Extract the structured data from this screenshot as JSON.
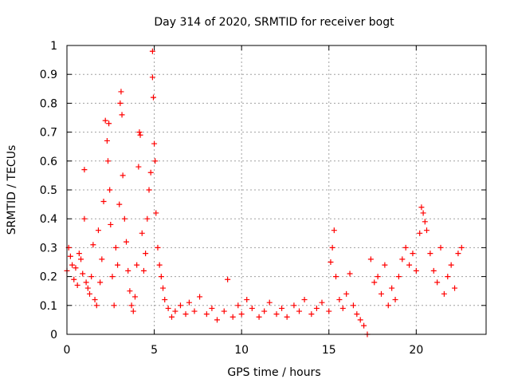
{
  "chart_data": {
    "type": "scatter",
    "title": "Day 314 of 2020, SRMTID for receiver bogt",
    "xlabel": "GPS time / hours",
    "ylabel": "SRMTID / TECUs",
    "xlim": [
      0,
      24
    ],
    "ylim": [
      0,
      1
    ],
    "x_ticks": [
      0,
      5,
      10,
      15,
      20
    ],
    "x_tick_labels": [
      "0",
      "5",
      "10",
      "15",
      "20"
    ],
    "y_ticks": [
      0,
      0.1,
      0.2,
      0.3,
      0.4,
      0.5,
      0.6,
      0.7,
      0.8,
      0.9,
      1
    ],
    "y_tick_labels": [
      "0",
      "0.1",
      "0.2",
      "0.3",
      "0.4",
      "0.5",
      "0.6",
      "0.7",
      "0.8",
      "0.9",
      "1"
    ],
    "grid": true,
    "marker": "plus",
    "color": "#ff0000",
    "series": [
      {
        "name": "SRMTID",
        "points": [
          [
            0.0,
            0.22
          ],
          [
            0.1,
            0.3
          ],
          [
            0.2,
            0.27
          ],
          [
            0.3,
            0.24
          ],
          [
            0.4,
            0.19
          ],
          [
            0.5,
            0.23
          ],
          [
            0.6,
            0.17
          ],
          [
            0.7,
            0.28
          ],
          [
            0.8,
            0.26
          ],
          [
            0.9,
            0.21
          ],
          [
            1.0,
            0.57
          ],
          [
            1.0,
            0.4
          ],
          [
            1.1,
            0.18
          ],
          [
            1.2,
            0.16
          ],
          [
            1.3,
            0.14
          ],
          [
            1.4,
            0.2
          ],
          [
            1.5,
            0.31
          ],
          [
            1.6,
            0.12
          ],
          [
            1.7,
            0.1
          ],
          [
            1.8,
            0.36
          ],
          [
            1.9,
            0.18
          ],
          [
            2.0,
            0.26
          ],
          [
            2.1,
            0.46
          ],
          [
            2.2,
            0.74
          ],
          [
            2.3,
            0.67
          ],
          [
            2.35,
            0.6
          ],
          [
            2.4,
            0.73
          ],
          [
            2.45,
            0.5
          ],
          [
            2.5,
            0.38
          ],
          [
            2.6,
            0.2
          ],
          [
            2.7,
            0.1
          ],
          [
            2.8,
            0.3
          ],
          [
            2.9,
            0.24
          ],
          [
            3.0,
            0.45
          ],
          [
            3.05,
            0.8
          ],
          [
            3.1,
            0.84
          ],
          [
            3.15,
            0.76
          ],
          [
            3.2,
            0.55
          ],
          [
            3.3,
            0.4
          ],
          [
            3.4,
            0.32
          ],
          [
            3.5,
            0.22
          ],
          [
            3.6,
            0.15
          ],
          [
            3.7,
            0.1
          ],
          [
            3.8,
            0.08
          ],
          [
            3.9,
            0.13
          ],
          [
            4.0,
            0.24
          ],
          [
            4.1,
            0.58
          ],
          [
            4.15,
            0.7
          ],
          [
            4.2,
            0.69
          ],
          [
            4.3,
            0.35
          ],
          [
            4.4,
            0.22
          ],
          [
            4.5,
            0.28
          ],
          [
            4.6,
            0.4
          ],
          [
            4.7,
            0.5
          ],
          [
            4.8,
            0.56
          ],
          [
            4.9,
            0.98
          ],
          [
            4.9,
            0.89
          ],
          [
            4.95,
            0.82
          ],
          [
            5.0,
            0.66
          ],
          [
            5.05,
            0.6
          ],
          [
            5.1,
            0.42
          ],
          [
            5.2,
            0.3
          ],
          [
            5.3,
            0.24
          ],
          [
            5.4,
            0.2
          ],
          [
            5.5,
            0.16
          ],
          [
            5.6,
            0.12
          ],
          [
            5.8,
            0.09
          ],
          [
            6.0,
            0.06
          ],
          [
            6.2,
            0.08
          ],
          [
            6.5,
            0.1
          ],
          [
            6.8,
            0.07
          ],
          [
            7.0,
            0.11
          ],
          [
            7.3,
            0.08
          ],
          [
            7.6,
            0.13
          ],
          [
            8.0,
            0.07
          ],
          [
            8.3,
            0.09
          ],
          [
            8.6,
            0.05
          ],
          [
            9.0,
            0.08
          ],
          [
            9.2,
            0.19
          ],
          [
            9.5,
            0.06
          ],
          [
            9.8,
            0.1
          ],
          [
            10.0,
            0.07
          ],
          [
            10.3,
            0.12
          ],
          [
            10.6,
            0.09
          ],
          [
            11.0,
            0.06
          ],
          [
            11.3,
            0.08
          ],
          [
            11.6,
            0.11
          ],
          [
            12.0,
            0.07
          ],
          [
            12.3,
            0.09
          ],
          [
            12.6,
            0.06
          ],
          [
            13.0,
            0.1
          ],
          [
            13.3,
            0.08
          ],
          [
            13.6,
            0.12
          ],
          [
            14.0,
            0.07
          ],
          [
            14.3,
            0.09
          ],
          [
            14.6,
            0.11
          ],
          [
            15.0,
            0.08
          ],
          [
            15.1,
            0.25
          ],
          [
            15.2,
            0.3
          ],
          [
            15.3,
            0.36
          ],
          [
            15.4,
            0.2
          ],
          [
            15.6,
            0.12
          ],
          [
            15.8,
            0.09
          ],
          [
            16.0,
            0.14
          ],
          [
            16.2,
            0.21
          ],
          [
            16.4,
            0.1
          ],
          [
            16.6,
            0.07
          ],
          [
            16.8,
            0.05
          ],
          [
            17.0,
            0.03
          ],
          [
            17.2,
            0.0
          ],
          [
            17.4,
            0.26
          ],
          [
            17.6,
            0.18
          ],
          [
            17.8,
            0.2
          ],
          [
            18.0,
            0.14
          ],
          [
            18.2,
            0.24
          ],
          [
            18.4,
            0.1
          ],
          [
            18.6,
            0.16
          ],
          [
            18.8,
            0.12
          ],
          [
            19.0,
            0.2
          ],
          [
            19.2,
            0.26
          ],
          [
            19.4,
            0.3
          ],
          [
            19.6,
            0.24
          ],
          [
            19.8,
            0.28
          ],
          [
            20.0,
            0.22
          ],
          [
            20.2,
            0.35
          ],
          [
            20.3,
            0.44
          ],
          [
            20.4,
            0.42
          ],
          [
            20.5,
            0.39
          ],
          [
            20.6,
            0.36
          ],
          [
            20.8,
            0.28
          ],
          [
            21.0,
            0.22
          ],
          [
            21.2,
            0.18
          ],
          [
            21.4,
            0.3
          ],
          [
            21.6,
            0.14
          ],
          [
            21.8,
            0.2
          ],
          [
            22.0,
            0.24
          ],
          [
            22.2,
            0.16
          ],
          [
            22.4,
            0.28
          ],
          [
            22.6,
            0.3
          ]
        ]
      }
    ]
  }
}
